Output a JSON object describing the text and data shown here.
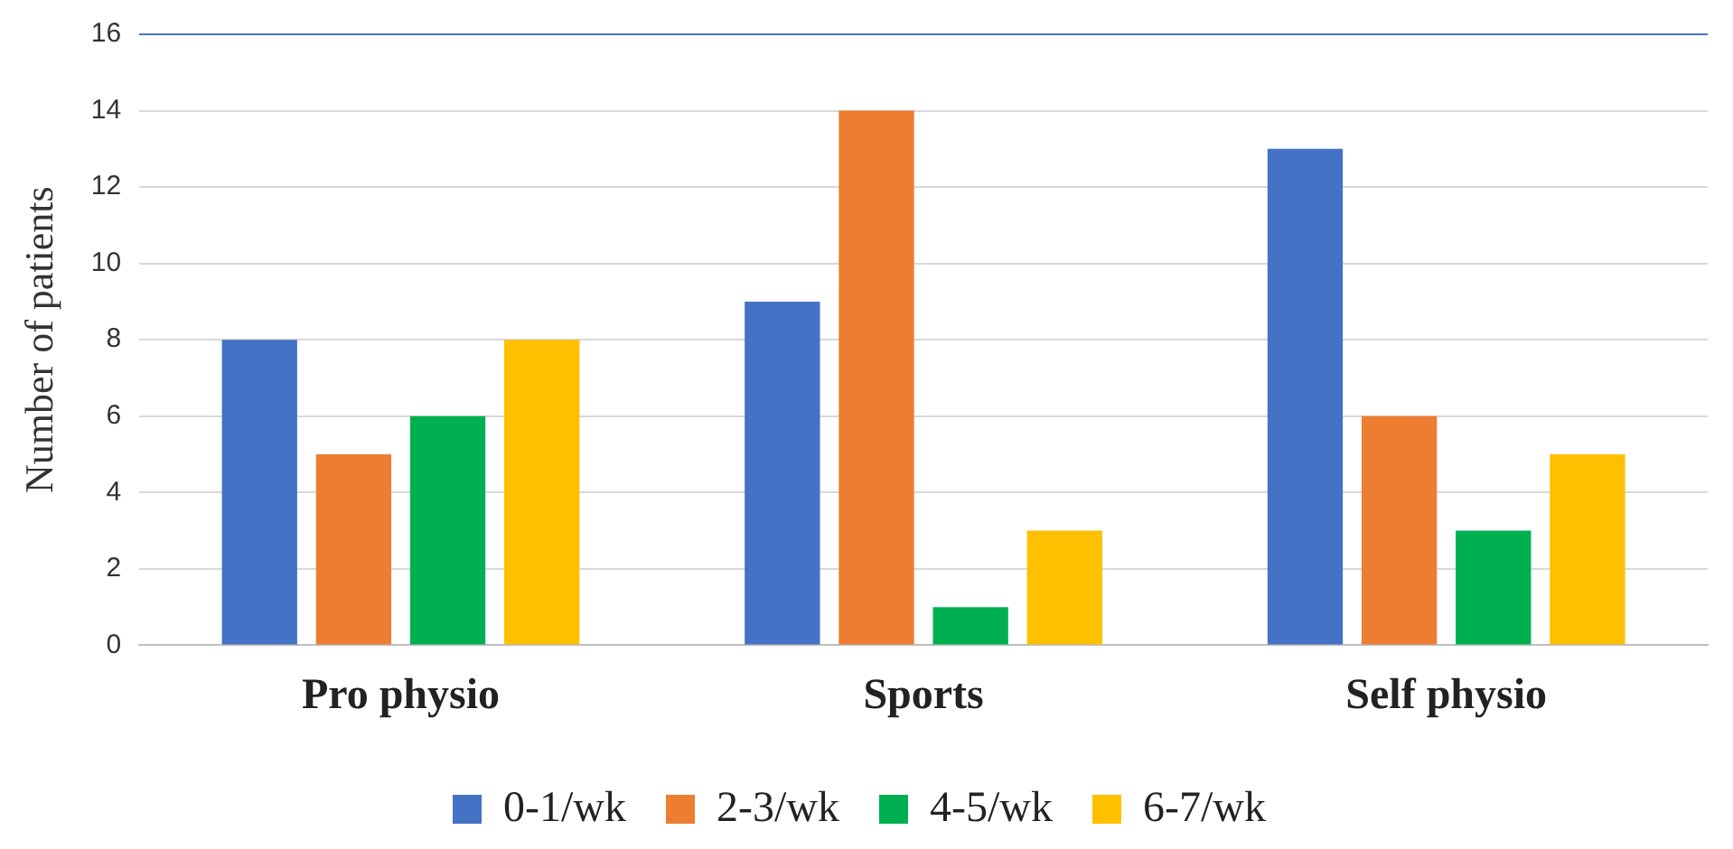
{
  "chart_data": {
    "type": "bar",
    "ylabel": "Number of patients",
    "categories": [
      "Pro physio",
      "Sports",
      "Self physio"
    ],
    "series": [
      {
        "name": "0-1/wk",
        "color": "#4472c4",
        "values": [
          8,
          9,
          13
        ]
      },
      {
        "name": "2-3/wk",
        "color": "#ed7d31",
        "values": [
          5,
          14,
          6
        ]
      },
      {
        "name": "4-5/wk",
        "color": "#00b050",
        "values": [
          6,
          1,
          3
        ]
      },
      {
        "name": "6-7/wk",
        "color": "#ffc000",
        "values": [
          8,
          3,
          5
        ]
      }
    ],
    "ylim": [
      0,
      16
    ],
    "yticks": [
      0,
      2,
      4,
      6,
      8,
      10,
      12,
      14,
      16
    ],
    "grid": "y",
    "legend": "bottom"
  }
}
